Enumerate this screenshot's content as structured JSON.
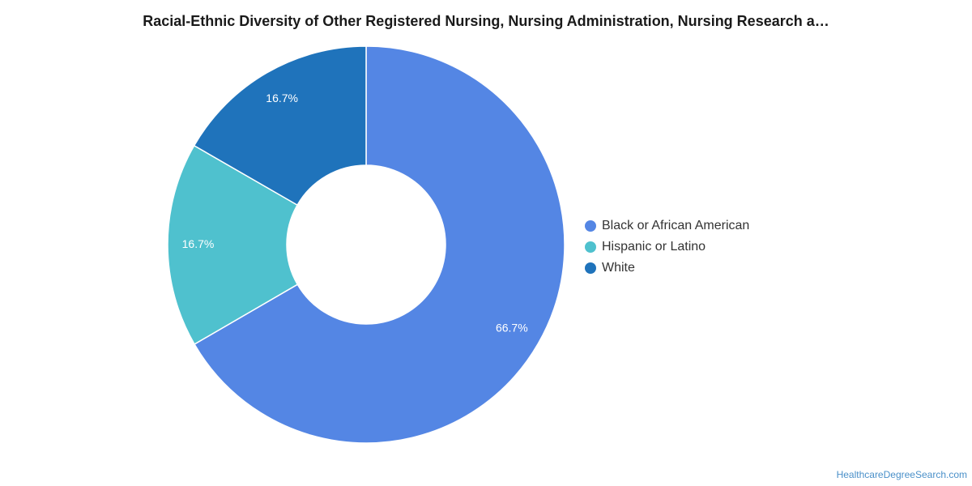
{
  "chart_data": {
    "type": "pie",
    "title": "Racial-Ethnic Diversity of Other Registered Nursing, Nursing Administration, Nursing Research a…",
    "donut": true,
    "legend_position": "right",
    "categories": [
      "Black or African American",
      "Hispanic or Latino",
      "White"
    ],
    "values": [
      66.7,
      16.7,
      16.7
    ],
    "labels": [
      "66.7%",
      "16.7%",
      "16.7%"
    ],
    "colors": [
      "#5486e4",
      "#4fc1ce",
      "#1f73bb"
    ]
  },
  "watermark": "HealthcareDegreeSearch.com"
}
